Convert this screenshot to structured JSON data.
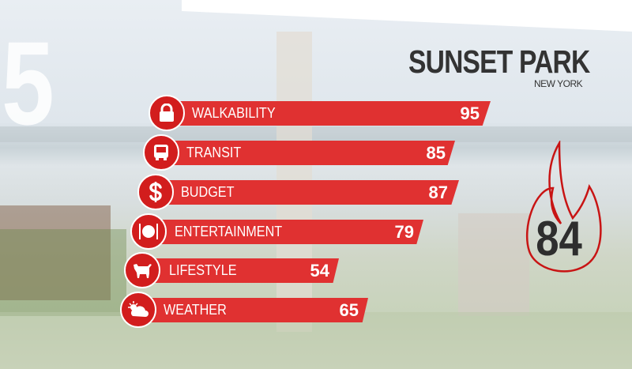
{
  "rank": "5",
  "title": "SUNSET PARK",
  "subtitle": "NEW YORK",
  "overall_score": "84",
  "accent_color": "#e03131",
  "categories": [
    {
      "label": "WALKABILITY",
      "value": "95",
      "icon": "lock-icon"
    },
    {
      "label": "TRANSIT",
      "value": "85",
      "icon": "bus-icon"
    },
    {
      "label": "BUDGET",
      "value": "87",
      "icon": "dollar-icon"
    },
    {
      "label": "ENTERTAINMENT",
      "value": "79",
      "icon": "dining-icon"
    },
    {
      "label": "LIFESTYLE",
      "value": "54",
      "icon": "dog-icon"
    },
    {
      "label": "WEATHER",
      "value": "65",
      "icon": "sun-cloud-icon"
    }
  ]
}
